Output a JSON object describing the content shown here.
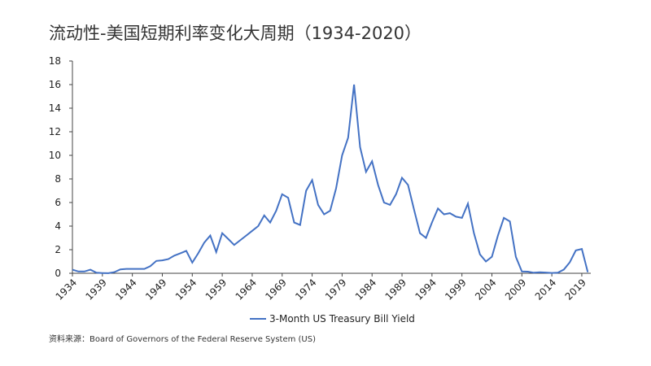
{
  "chart_data": {
    "type": "line",
    "title": "流动性-美国短期利率变化大周期（1934-2020）",
    "source": "资料来源：Board of Governors of the Federal Reserve System (US)",
    "x": [
      1934,
      1935,
      1936,
      1937,
      1938,
      1939,
      1940,
      1941,
      1942,
      1943,
      1944,
      1945,
      1946,
      1947,
      1948,
      1949,
      1950,
      1951,
      1952,
      1953,
      1954,
      1955,
      1956,
      1957,
      1958,
      1959,
      1960,
      1961,
      1962,
      1963,
      1964,
      1965,
      1966,
      1967,
      1968,
      1969,
      1970,
      1971,
      1972,
      1973,
      1974,
      1975,
      1976,
      1977,
      1978,
      1979,
      1980,
      1981,
      1982,
      1983,
      1984,
      1985,
      1986,
      1987,
      1988,
      1989,
      1990,
      1991,
      1992,
      1993,
      1994,
      1995,
      1996,
      1997,
      1998,
      1999,
      2000,
      2001,
      2002,
      2003,
      2004,
      2005,
      2006,
      2007,
      2008,
      2009,
      2010,
      2011,
      2012,
      2013,
      2014,
      2015,
      2016,
      2017,
      2018,
      2019,
      2020
    ],
    "series": [
      {
        "name": "3-Month US Treasury Bill Yield",
        "color": "#4472c4",
        "values": [
          0.3,
          0.15,
          0.15,
          0.3,
          0.05,
          0.02,
          0.01,
          0.1,
          0.33,
          0.37,
          0.37,
          0.37,
          0.37,
          0.6,
          1.05,
          1.1,
          1.2,
          1.5,
          1.7,
          1.9,
          0.9,
          1.7,
          2.6,
          3.2,
          1.8,
          3.4,
          2.9,
          2.4,
          2.8,
          3.2,
          3.6,
          4.0,
          4.9,
          4.3,
          5.3,
          6.7,
          6.4,
          4.3,
          4.1,
          7.0,
          7.9,
          5.8,
          5.0,
          5.3,
          7.2,
          10.0,
          11.5,
          16.0,
          10.7,
          8.6,
          9.5,
          7.5,
          6.0,
          5.8,
          6.7,
          8.1,
          7.5,
          5.4,
          3.4,
          3.0,
          4.3,
          5.5,
          5.0,
          5.1,
          4.8,
          4.7,
          5.9,
          3.4,
          1.6,
          1.0,
          1.4,
          3.2,
          4.7,
          4.4,
          1.4,
          0.15,
          0.14,
          0.05,
          0.09,
          0.06,
          0.03,
          0.05,
          0.32,
          0.93,
          1.94,
          2.06,
          0.1
        ]
      }
    ],
    "xlim": [
      1934,
      2020.5
    ],
    "xticks": [
      1934,
      1939,
      1944,
      1949,
      1954,
      1959,
      1964,
      1969,
      1974,
      1979,
      1984,
      1989,
      1994,
      1999,
      2004,
      2009,
      2014,
      2019
    ],
    "ylim": [
      0,
      18
    ],
    "yticks": [
      0,
      2,
      4,
      6,
      8,
      10,
      12,
      14,
      16,
      18
    ],
    "legend": "bottom"
  }
}
